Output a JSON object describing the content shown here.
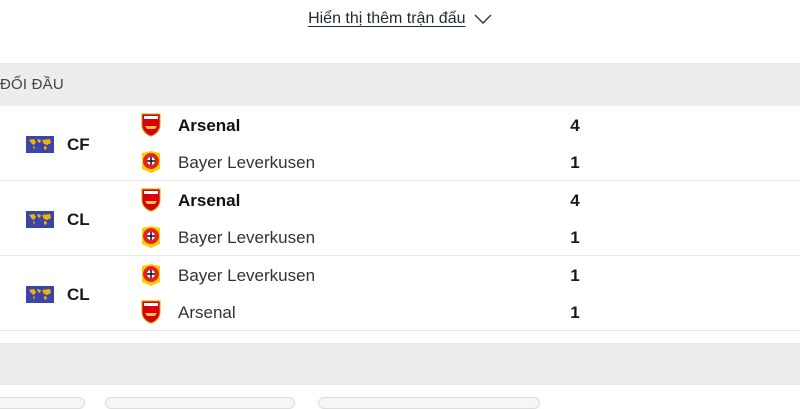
{
  "show_more": {
    "label": "Hiển thị thêm trận đấu",
    "icon": "chevron-down-icon"
  },
  "section": {
    "title": "ĐỐI ĐẦU"
  },
  "matches": [
    {
      "competition": "CF",
      "home": {
        "name": "Arsenal",
        "score": "4",
        "winner": true,
        "crest": "arsenal"
      },
      "away": {
        "name": "Bayer Leverkusen",
        "score": "1",
        "winner": false,
        "crest": "leverkusen"
      }
    },
    {
      "competition": "CL",
      "home": {
        "name": "Arsenal",
        "score": "4",
        "winner": true,
        "crest": "arsenal"
      },
      "away": {
        "name": "Bayer Leverkusen",
        "score": "1",
        "winner": false,
        "crest": "leverkusen"
      }
    },
    {
      "competition": "CL",
      "home": {
        "name": "Bayer Leverkusen",
        "score": "1",
        "winner": false,
        "crest": "leverkusen"
      },
      "away": {
        "name": "Arsenal",
        "score": "1",
        "winner": false,
        "crest": "arsenal"
      }
    }
  ],
  "colors": {
    "arsenal": "#db0007",
    "leverkusen_red": "#e32221",
    "leverkusen_yellow": "#f5d000",
    "competition_flag": "#3b44a8",
    "world_map": "#f0b400"
  }
}
